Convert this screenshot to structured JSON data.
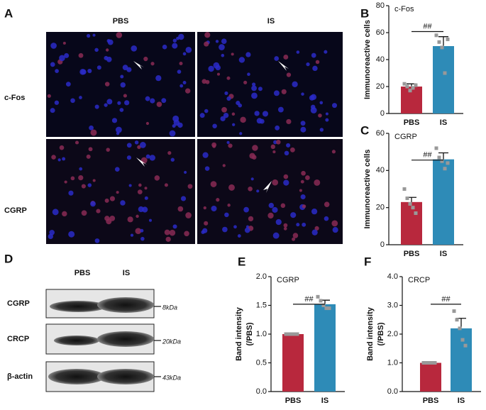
{
  "panel_a": {
    "label": "A",
    "columns": [
      "PBS",
      "IS"
    ],
    "rows": [
      "c-Fos",
      "CGRP"
    ]
  },
  "panel_d": {
    "label": "D",
    "columns": [
      "PBS",
      "IS"
    ],
    "rows": [
      "CGRP",
      "CRCP",
      "β-actin"
    ],
    "sizes": [
      "8kDa",
      "20kDa",
      "43kDa"
    ]
  },
  "chart_data": [
    {
      "type": "bar",
      "panel": "B",
      "subtitle": "c-Fos",
      "ylabel": [
        "Immunoreactive cells"
      ],
      "categories": [
        "PBS",
        "IS"
      ],
      "colors": [
        "#b8283d",
        "#2e8bb7"
      ],
      "values": [
        20,
        50
      ],
      "errors": [
        2,
        7
      ],
      "points": [
        [
          22,
          20,
          17,
          19,
          21
        ],
        [
          58,
          53,
          49,
          30,
          55
        ]
      ],
      "annotation": "##",
      "ylim": [
        0,
        80
      ],
      "yticks": [
        0,
        20,
        40,
        60,
        80
      ]
    },
    {
      "type": "bar",
      "panel": "C",
      "subtitle": "CGRP",
      "ylabel": [
        "Immunoreactive cells"
      ],
      "categories": [
        "PBS",
        "IS"
      ],
      "colors": [
        "#b8283d",
        "#2e8bb7"
      ],
      "values": [
        23,
        46
      ],
      "errors": [
        2.5,
        3.5
      ],
      "points": [
        [
          30,
          25,
          22,
          20,
          17
        ],
        [
          52,
          47,
          45,
          41,
          44
        ]
      ],
      "annotation": "##",
      "ylim": [
        0,
        60
      ],
      "yticks": [
        0,
        20,
        40,
        60
      ]
    },
    {
      "type": "bar",
      "panel": "E",
      "subtitle": "CGRP",
      "ylabel": [
        "Band intensity",
        "(/PBS)"
      ],
      "categories": [
        "PBS",
        "IS"
      ],
      "colors": [
        "#b8283d",
        "#2e8bb7"
      ],
      "values": [
        1,
        1.52
      ],
      "errors": [
        0,
        0.07
      ],
      "points": [
        [
          1,
          1,
          1,
          1,
          1
        ],
        [
          1.65,
          1.58,
          1.5,
          1.45,
          1.45
        ]
      ],
      "annotation": "##",
      "ylim": [
        0,
        2
      ],
      "yticks": [
        {
          "value": 0,
          "label": "0.0"
        },
        {
          "value": 0.5,
          "label": "0.5"
        },
        {
          "value": 1,
          "label": "1.0"
        },
        {
          "value": 1.5,
          "label": "1.5"
        },
        {
          "value": 2,
          "label": "2.0"
        }
      ]
    },
    {
      "type": "bar",
      "panel": "F",
      "subtitle": "CRCP",
      "ylabel": [
        "Band intensity",
        "(/PBS)"
      ],
      "categories": [
        "PBS",
        "IS"
      ],
      "colors": [
        "#b8283d",
        "#2e8bb7"
      ],
      "values": [
        1,
        2.2
      ],
      "errors": [
        0,
        0.35
      ],
      "points": [
        [
          1,
          1,
          1,
          1,
          1
        ],
        [
          2.8,
          2.5,
          2.2,
          1.8,
          1.6
        ]
      ],
      "annotation": "##",
      "ylim": [
        0,
        4
      ],
      "yticks": [
        {
          "value": 0,
          "label": "0.0"
        },
        {
          "value": 1,
          "label": "1.0"
        },
        {
          "value": 2,
          "label": "2.0"
        },
        {
          "value": 3,
          "label": "3.0"
        },
        {
          "value": 4,
          "label": "4.0"
        }
      ]
    }
  ]
}
